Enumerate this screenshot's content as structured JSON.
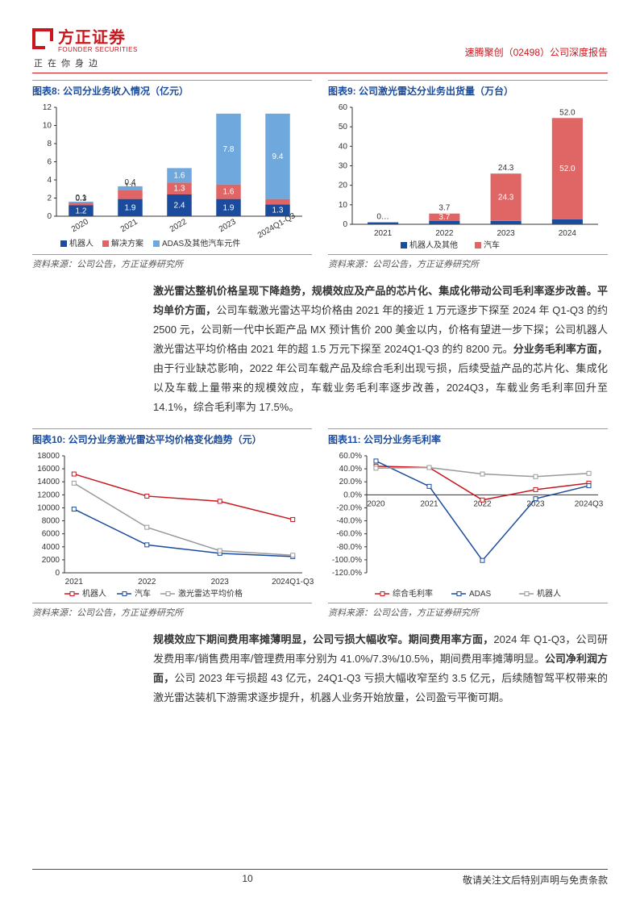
{
  "header": {
    "logo_cn": "方正证券",
    "logo_en": "FOUNDER SECURITIES",
    "tagline": "正在你身边",
    "right": "速腾聚创（02498）公司深度报告"
  },
  "chart8": {
    "title": "图表8: 公司分业务收入情况（亿元）",
    "type": "stacked-bar",
    "categories": [
      "2020",
      "2021",
      "2022",
      "2023",
      "2024Q1-Q3"
    ],
    "series": [
      {
        "name": "机器人",
        "color": "#1a4b9c",
        "values": [
          1.2,
          1.9,
          2.4,
          1.9,
          1.3
        ]
      },
      {
        "name": "解决方案",
        "color": "#e06666",
        "values": [
          0.3,
          1.0,
          1.3,
          1.6,
          0.6
        ]
      },
      {
        "name": "ADAS及其他汽车元件",
        "color": "#6fa8dc",
        "values": [
          0.1,
          0.4,
          1.6,
          7.8,
          9.4
        ]
      }
    ],
    "ylim": [
      0,
      12
    ],
    "ytick_step": 2,
    "source": "资料来源：公司公告，方正证券研究所"
  },
  "chart9": {
    "title": "图表9: 公司激光雷达分业务出货量（万台）",
    "type": "stacked-bar",
    "categories": [
      "2021",
      "2022",
      "2023",
      "2024"
    ],
    "series": [
      {
        "name": "机器人及其他",
        "color": "#1a4b9c",
        "values": [
          1.0,
          1.8,
          1.7,
          2.5
        ]
      },
      {
        "name": "汽车",
        "color": "#e06666",
        "values": [
          0.0,
          3.7,
          24.3,
          52.0
        ]
      }
    ],
    "top_labels": [
      "0…",
      "3.7",
      "24.3",
      "52.0"
    ],
    "ylim": [
      0,
      60
    ],
    "ytick_step": 10,
    "source": "资料来源：公司公告，方正证券研究所"
  },
  "para1": "激光雷达整机价格呈现下降趋势，规模效应及产品的芯片化、集成化带动公司毛利率逐步改善。平均单价方面，公司车载激光雷达平均价格由 2021 年的接近 1 万元逐步下探至 2024 年 Q1-Q3 的约 2500 元，公司新一代中长距产品 MX 预计售价 200 美金以内，价格有望进一步下探；公司机器人激光雷达平均价格由 2021 年的超 1.5 万元下探至 2024Q1-Q3 的约 8200 元。分业务毛利率方面，由于行业缺芯影响，2022 年公司车载产品及综合毛利出现亏损，后续受益产品的芯片化、集成化以及车载上量带来的规模效应，车载业务毛利率逐步改善，2024Q3，车载业务毛利率回升至 14.1%，综合毛利率为 17.5%。",
  "chart10": {
    "title": "图表10: 公司分业务激光雷达平均价格变化趋势（元）",
    "type": "line",
    "x": [
      "2021",
      "2022",
      "2023",
      "2024Q1-Q3"
    ],
    "ylim": [
      0,
      18000
    ],
    "ytick_step": 2000,
    "series": [
      {
        "name": "机器人",
        "color": "#c8171e",
        "values": [
          15200,
          11800,
          11000,
          8200
        ]
      },
      {
        "name": "汽车",
        "color": "#1a4b9c",
        "values": [
          9800,
          4300,
          3000,
          2500
        ]
      },
      {
        "name": "激光雷达平均价格",
        "color": "#999999",
        "values": [
          13800,
          7000,
          3400,
          2700
        ]
      }
    ],
    "source": "资料来源：公司公告，方正证券研究所"
  },
  "chart11": {
    "title": "图表11: 公司分业务毛利率",
    "type": "line",
    "x": [
      "2020",
      "2021",
      "2022",
      "2023",
      "2024Q3"
    ],
    "ylim": [
      -120,
      60
    ],
    "ytick_step": 20,
    "series": [
      {
        "name": "综合毛利率",
        "color": "#c8171e",
        "values": [
          44,
          42,
          -8,
          8,
          18
        ]
      },
      {
        "name": "ADAS",
        "color": "#1a4b9c",
        "values": [
          52,
          13,
          -101,
          -6,
          14
        ]
      },
      {
        "name": "机器人",
        "color": "#999999",
        "values": [
          41,
          42,
          32,
          28,
          33
        ]
      }
    ],
    "source": "资料来源：公司公告，方正证券研究所"
  },
  "para2": "规模效应下期间费用率摊薄明显，公司亏损大幅收窄。期间费用率方面，2024 年 Q1-Q3，公司研发费用率/销售费用率/管理费用率分别为 41.0%/7.3%/10.5%，期间费用率摊薄明显。公司净利润方面，公司 2023 年亏损超 43 亿元，24Q1-Q3 亏损大幅收窄至约 3.5 亿元，后续随智驾平权带来的激光雷达装机下游需求逐步提升，机器人业务开始放量，公司盈亏平衡可期。",
  "footer": {
    "page": "10",
    "disclaimer": "敬请关注文后特别声明与免责条款"
  }
}
